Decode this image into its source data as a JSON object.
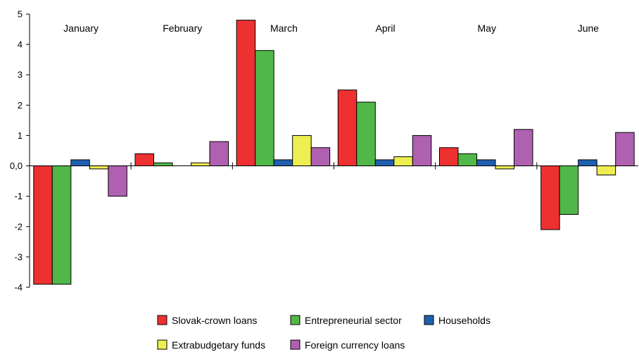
{
  "chart_data": {
    "type": "bar",
    "title": "",
    "xlabel": "",
    "ylabel": "",
    "categories": [
      "January",
      "February",
      "March",
      "April",
      "May",
      "June"
    ],
    "series": [
      {
        "name": "Slovak-crown loans",
        "color": "#ee3030",
        "values": [
          -3.9,
          0.4,
          4.8,
          2.5,
          0.6,
          -2.1
        ]
      },
      {
        "name": "Entrepreneurial sector",
        "color": "#50b848",
        "values": [
          -3.9,
          0.1,
          3.8,
          2.1,
          0.4,
          -1.6
        ]
      },
      {
        "name": "Households",
        "color": "#1f5fb0",
        "values": [
          0.2,
          0.0,
          0.2,
          0.2,
          0.2,
          0.2
        ]
      },
      {
        "name": "Extrabudgetary funds",
        "color": "#eeee50",
        "values": [
          -0.1,
          0.1,
          1.0,
          0.3,
          -0.1,
          -0.3
        ]
      },
      {
        "name": "Foreign currency loans",
        "color": "#b060b0",
        "values": [
          -1.0,
          0.8,
          0.6,
          1.0,
          1.2,
          1.1
        ]
      }
    ],
    "ylim": [
      -4,
      5
    ],
    "yticks": [
      "5",
      "4",
      "3",
      "2",
      "1",
      "0,0",
      "-1",
      "-2",
      "-3",
      "-4"
    ],
    "grid": false,
    "legend_position": "bottom"
  }
}
